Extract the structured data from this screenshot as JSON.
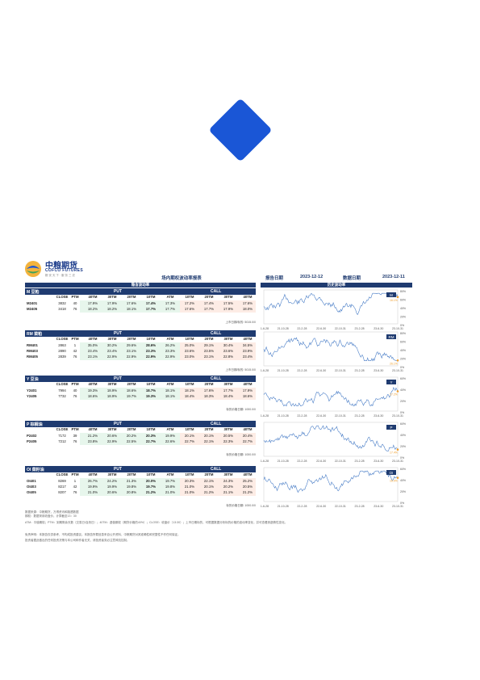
{
  "brand": {
    "name_cn": "中粮期货",
    "name_en": "COFCO FUTURES",
    "tagline": "粮 安 天 下 · 服 务 三 农"
  },
  "header": {
    "table_title": "场内期权波动率报表",
    "report_date_label": "报告日期",
    "report_date": "2023-12-12",
    "data_date_label": "数据日期",
    "data_date": "2023-12-11"
  },
  "table_subtitle": "隐含波动率",
  "chart_subtitle": "历史波动率",
  "columns": [
    "CLOSE",
    "PTM",
    "40TM",
    "30TM",
    "20TM",
    "10TM",
    "ATM",
    "10TM",
    "20TM",
    "30TM",
    "40TM"
  ],
  "panels": [
    {
      "name": "M 豆粕",
      "put": "PUT",
      "call": "CALL",
      "footnote": "上市日期/标的: 5015.0/0",
      "rows": [
        [
          "M2401",
          "3832",
          "40",
          "17.9%",
          "17.9%",
          "17.6%",
          "17.4%",
          "17.3%",
          "17.2%",
          "17.4%",
          "17.5%",
          "17.6%"
        ],
        [
          "M2405",
          "3418",
          "76",
          "18.2%",
          "18.2%",
          "18.1%",
          "17.7%",
          "17.7%",
          "17.6%",
          "17.7%",
          "17.9%",
          "18.0%"
        ]
      ],
      "chart_code": "M",
      "chart_last": "16.1%"
    },
    {
      "name": "RM 菜粕",
      "put": "PUT",
      "call": "CALL",
      "footnote": "上市日期/标的: 5015.0/0",
      "rows": [
        [
          "RM401",
          "2863",
          "1",
          "35.0%",
          "30.2%",
          "29.6%",
          "28.6%",
          "26.2%",
          "25.0%",
          "29.1%",
          "30.4%",
          "34.5%"
        ],
        [
          "RM403",
          "2890",
          "42",
          "23.4%",
          "23.4%",
          "23.1%",
          "23.3%",
          "23.3%",
          "23.6%",
          "23.5%",
          "23.6%",
          "23.9%"
        ],
        [
          "RM405",
          "2839",
          "76",
          "23.1%",
          "22.9%",
          "22.9%",
          "22.9%",
          "22.9%",
          "23.0%",
          "23.1%",
          "22.8%",
          "23.4%"
        ]
      ],
      "chart_code": "RM",
      "chart_last": "26.1%"
    },
    {
      "name": "Y 豆油",
      "put": "PUT",
      "call": "CALL",
      "footnote": "标的价格日期: 1000.0/0",
      "rows": [
        [
          "Y2401",
          "7994",
          "40",
          "19.3%",
          "18.9%",
          "18.6%",
          "18.7%",
          "18.1%",
          "18.1%",
          "17.6%",
          "17.7%",
          "17.9%"
        ],
        [
          "Y2405",
          "7732",
          "76",
          "18.6%",
          "18.9%",
          "19.7%",
          "19.3%",
          "18.1%",
          "18.4%",
          "18.3%",
          "18.4%",
          "18.6%"
        ]
      ],
      "chart_code": "Y",
      "chart_last": "17.2%"
    },
    {
      "name": "P 棕榈油",
      "put": "PUT",
      "call": "CALL",
      "footnote": "标的价格日期: 1000.0/0",
      "rows": [
        [
          "P2402",
          "7172",
          "39",
          "21.2%",
          "20.6%",
          "20.2%",
          "20.3%",
          "19.9%",
          "20.1%",
          "20.1%",
          "20.5%",
          "20.4%"
        ],
        [
          "P2405",
          "7212",
          "76",
          "23.8%",
          "22.9%",
          "22.5%",
          "22.7%",
          "22.6%",
          "22.7%",
          "22.1%",
          "22.3%",
          "22.7%"
        ]
      ],
      "chart_code": "P",
      "chart_last": "17.4%"
    },
    {
      "name": "OI 菜籽油",
      "put": "PUT",
      "call": "CALL",
      "footnote": "标的价格日期: 1000.0/0",
      "rows": [
        [
          "OI401",
          "8269",
          "1",
          "26.7%",
          "24.2%",
          "21.3%",
          "20.0%",
          "19.7%",
          "20.3%",
          "22.1%",
          "24.3%",
          "25.2%"
        ],
        [
          "OI403",
          "8217",
          "42",
          "19.9%",
          "19.9%",
          "19.8%",
          "19.7%",
          "19.8%",
          "21.0%",
          "20.1%",
          "20.2%",
          "20.5%"
        ],
        [
          "OI405",
          "8207",
          "76",
          "21.0%",
          "20.6%",
          "20.8%",
          "21.2%",
          "21.0%",
          "21.0%",
          "21.2%",
          "21.1%",
          "21.2%"
        ]
      ],
      "chart_code": "OI",
      "chart_last": "16.9%"
    }
  ],
  "chart_xticks": [
    "21-6-28",
    "21-10-28",
    "22-2-28",
    "22-6-30",
    "22-10-31",
    "23-2-28",
    "23-6-30",
    "23-10-31"
  ],
  "chart_yticks": [
    [
      "80%",
      "60%",
      "40%",
      "20%",
      "0%"
    ],
    [
      "80%",
      "60%",
      "40%",
      "20%",
      "0%"
    ],
    [
      "60%",
      "40%",
      "20%",
      "0%"
    ],
    [
      "60%",
      "40%",
      "20%",
      "0%"
    ],
    [
      "60%",
      "40%",
      "20%",
      "0%"
    ]
  ],
  "notes": [
    "数据来源：中粮期货，万得资讯和路透数据",
    "期权：数据采用收盘价，计算截至13：30",
    "ATM：平值期权；PTM：到期剩余天数（交易日/自然日）；40TM：虚值期权（期货价格的40%）；CLOSE：收盘价（13:30）；上市日期标的，可根据数据分析标的价格的波动率变化，并可查看其趋势性变化。",
    "免责声明：本报告仅供参考，不构成投资建议。本报告所载信息来自公开资料，中粮期货对其准确性和完整性不作任何保证。",
    "投资者据此做出的任何投资决策与本公司和作者无关，请投资者务必注意风险控制。"
  ],
  "colors": {
    "accent": "#1a56d6",
    "header_bg": "#1f3b70",
    "put_bg": "#e7f6ec",
    "call_bg": "#fdece5",
    "line": "#4a7ec7",
    "last_point": "#f0a030"
  }
}
